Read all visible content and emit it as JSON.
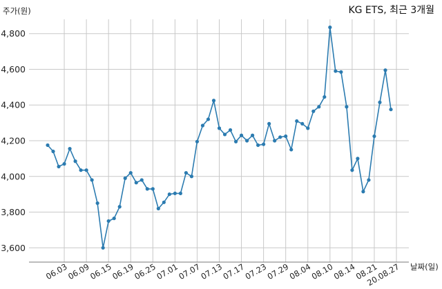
{
  "chart_data": {
    "type": "line",
    "title": "KG ETS, 최근 3개월",
    "xlabel": "날짜(일)",
    "ylabel": "주가(원)",
    "ylim": [
      3520,
      4880
    ],
    "grid": true,
    "colors": {
      "line": "#2b7bb0",
      "grid": "#c8c8c8",
      "axis": "#777777"
    },
    "ticks_y": [
      3600,
      3800,
      4000,
      4200,
      4400,
      4600,
      4800
    ],
    "ticks_y_labels": [
      "3,600",
      "3,800",
      "4,000",
      "4,200",
      "4,400",
      "4,600",
      "4,800"
    ],
    "xticks": [
      {
        "label": "06.03",
        "index": 3
      },
      {
        "label": "06.09",
        "index": 7
      },
      {
        "label": "06.15",
        "index": 11
      },
      {
        "label": "06.19",
        "index": 15
      },
      {
        "label": "06.25",
        "index": 19
      },
      {
        "label": "07.01",
        "index": 23
      },
      {
        "label": "07.07",
        "index": 27
      },
      {
        "label": "07.13",
        "index": 31
      },
      {
        "label": "07.17",
        "index": 35
      },
      {
        "label": "07.23",
        "index": 39
      },
      {
        "label": "07.29",
        "index": 43
      },
      {
        "label": "08.04",
        "index": 47
      },
      {
        "label": "08.10",
        "index": 51
      },
      {
        "label": "08.14",
        "index": 55
      },
      {
        "label": "08.21",
        "index": 59
      },
      {
        "label": "20.08.27",
        "index": 63
      }
    ],
    "values": [
      4175,
      4140,
      4055,
      4070,
      4155,
      4085,
      4035,
      4035,
      3980,
      3850,
      3600,
      3750,
      3765,
      3830,
      3990,
      4020,
      3965,
      3980,
      3930,
      3930,
      3820,
      3855,
      3900,
      3905,
      3905,
      4020,
      4000,
      4195,
      4285,
      4320,
      4425,
      4270,
      4235,
      4260,
      4195,
      4230,
      4200,
      4230,
      4175,
      4180,
      4295,
      4200,
      4220,
      4225,
      4150,
      4310,
      4295,
      4270,
      4365,
      4390,
      4445,
      4835,
      4590,
      4585,
      4390,
      4035,
      4100,
      3915,
      3980,
      4225,
      4415,
      4595,
      4375
    ]
  }
}
